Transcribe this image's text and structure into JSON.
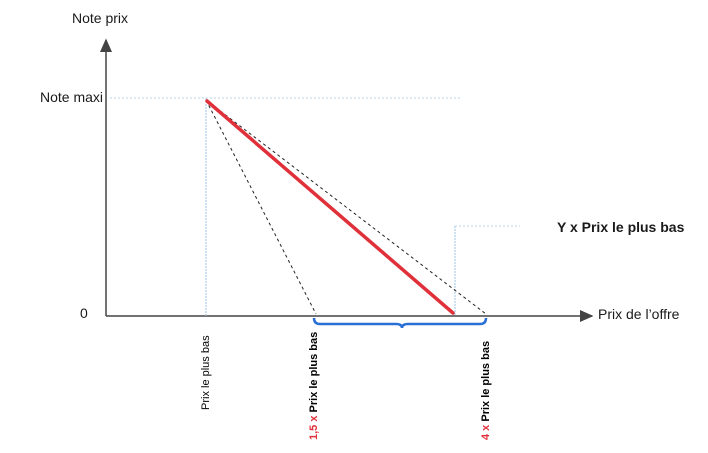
{
  "axes": {
    "y_label": "Note prix",
    "x_label": "Prix de l’offre",
    "y_max_label": "Note maxi",
    "origin_label": "0"
  },
  "annotation": "Y x Prix le plus bas",
  "ticks": {
    "t1": "Prix le plus bas",
    "t2_factor": "1,5 x",
    "t2_text": "Prix le plus bas",
    "t3_factor": "4 x",
    "t3_text": "Prix le plus bas"
  },
  "colors": {
    "main_line": "#e0303a",
    "brace": "#2a6fd6",
    "axis": "#444444",
    "guides": "#9ec3e6",
    "dashed": "#222222",
    "factor_text": "#e0303a"
  }
}
